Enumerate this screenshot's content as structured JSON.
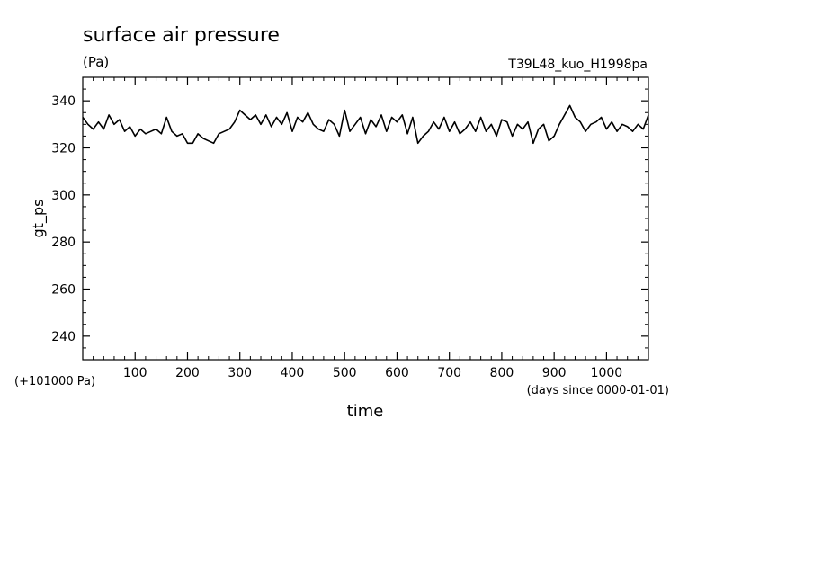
{
  "chart_data": {
    "type": "line",
    "title": "surface air pressure",
    "units": "(Pa)",
    "run_label": "T39L48_kuo_H1998pa",
    "ylabel": "gt_ps",
    "xlabel": "time",
    "y_offset_label": "(+101000 Pa)",
    "x_units_label": "(days since 0000-01-01)",
    "xlim": [
      0,
      1080
    ],
    "ylim": [
      230,
      350
    ],
    "x_ticks": [
      100,
      200,
      300,
      400,
      500,
      600,
      700,
      800,
      900,
      1000
    ],
    "y_ticks": [
      240,
      260,
      280,
      300,
      320,
      340
    ],
    "x_tick_labels": [
      "100",
      "200",
      "300",
      "400",
      "500",
      "600",
      "700",
      "800",
      "900",
      "1000"
    ],
    "y_tick_labels": [
      "240",
      "260",
      "280",
      "300",
      "320",
      "340"
    ],
    "series": [
      {
        "color": "#000000",
        "x": [
          0,
          10,
          20,
          30,
          40,
          50,
          60,
          70,
          80,
          90,
          100,
          110,
          120,
          130,
          140,
          150,
          160,
          170,
          180,
          190,
          200,
          210,
          220,
          230,
          240,
          250,
          260,
          270,
          280,
          290,
          300,
          310,
          320,
          330,
          340,
          350,
          360,
          370,
          380,
          390,
          400,
          410,
          420,
          430,
          440,
          450,
          460,
          470,
          480,
          490,
          500,
          510,
          520,
          530,
          540,
          550,
          560,
          570,
          580,
          590,
          600,
          610,
          620,
          630,
          640,
          650,
          660,
          670,
          680,
          690,
          700,
          710,
          720,
          730,
          740,
          750,
          760,
          770,
          780,
          790,
          800,
          810,
          820,
          830,
          840,
          850,
          860,
          870,
          880,
          890,
          900,
          910,
          920,
          930,
          940,
          950,
          960,
          970,
          980,
          990,
          1000,
          1010,
          1020,
          1030,
          1040,
          1050,
          1060,
          1070,
          1080
        ],
        "y": [
          333,
          330,
          328,
          331,
          328,
          334,
          330,
          332,
          327,
          329,
          325,
          328,
          326,
          327,
          328,
          326,
          333,
          327,
          325,
          326,
          322,
          322,
          326,
          324,
          323,
          322,
          326,
          327,
          328,
          331,
          336,
          334,
          332,
          334,
          330,
          334,
          329,
          333,
          330,
          335,
          327,
          333,
          331,
          335,
          330,
          328,
          327,
          332,
          330,
          325,
          336,
          327,
          330,
          333,
          326,
          332,
          329,
          334,
          327,
          333,
          331,
          334,
          326,
          333,
          322,
          325,
          327,
          331,
          328,
          333,
          327,
          331,
          326,
          328,
          331,
          327,
          333,
          327,
          330,
          325,
          332,
          331,
          325,
          330,
          328,
          331,
          322,
          328,
          330,
          323,
          325,
          330,
          334,
          338,
          333,
          331,
          327,
          330,
          331,
          333,
          328,
          331,
          327,
          330,
          329,
          327,
          330,
          328,
          334
        ]
      }
    ]
  }
}
